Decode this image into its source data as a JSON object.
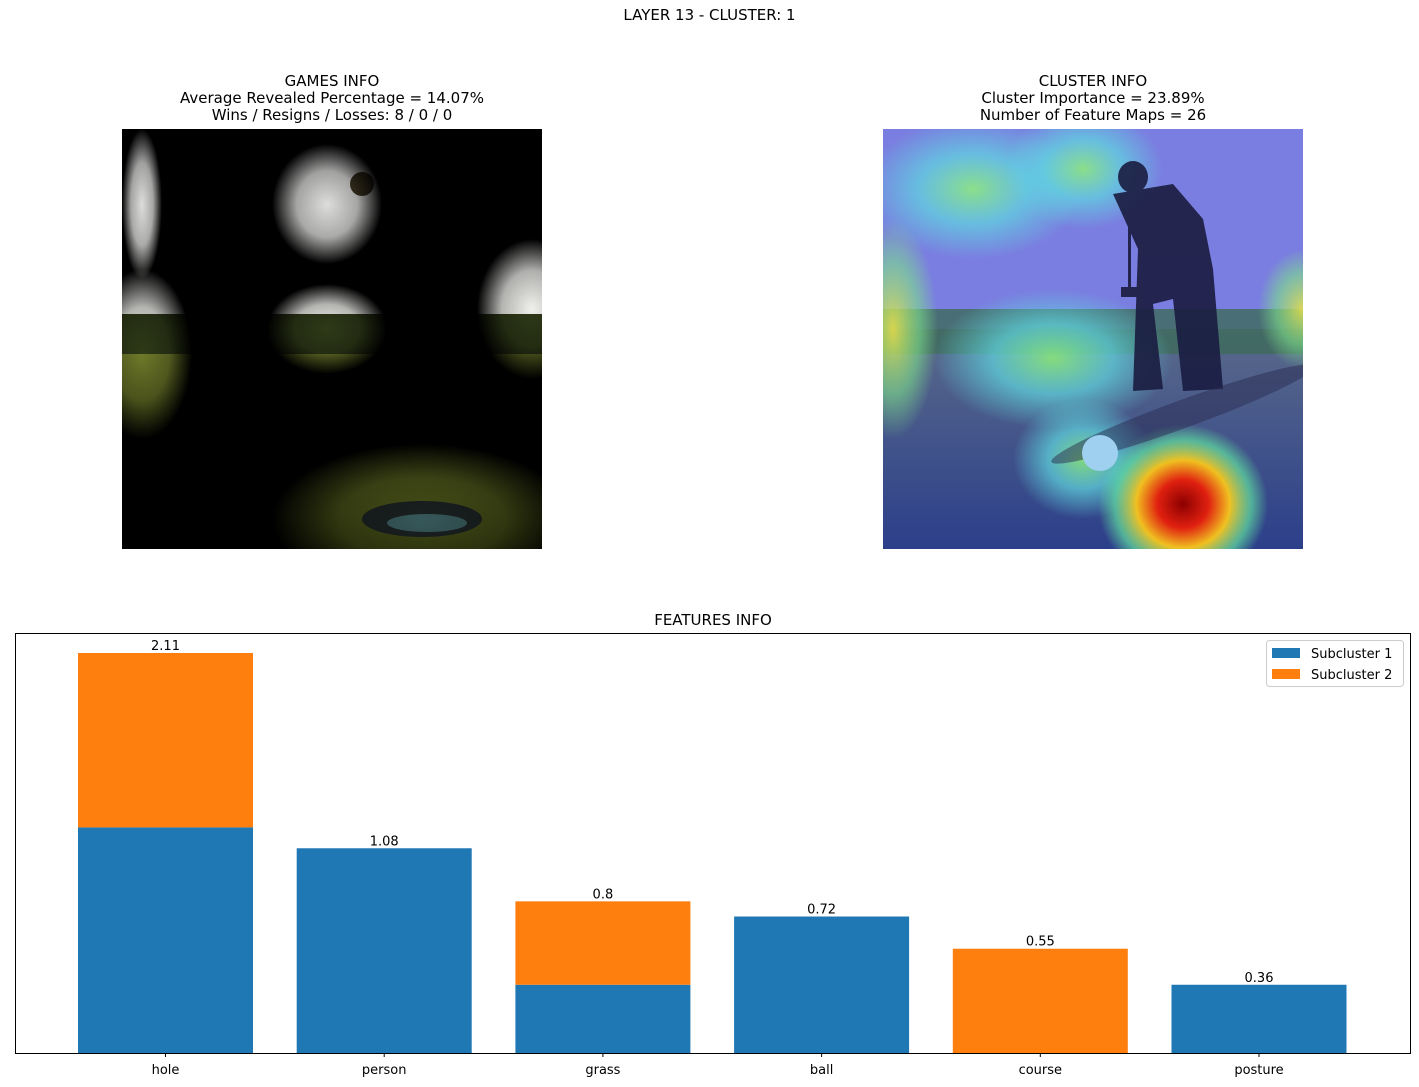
{
  "suptitle": "LAYER 13 - CLUSTER: 1",
  "games_info": {
    "title": "GAMES INFO",
    "line1": "Average Revealed Percentage = 14.07%",
    "line2": "Wins / Resigns / Losses: 8 / 0 / 0"
  },
  "cluster_info": {
    "title": "CLUSTER INFO",
    "line1": "Cluster Importance = 23.89%",
    "line2": "Number of Feature Maps = 26"
  },
  "colors": {
    "subcluster1": "#1f77b4",
    "subcluster2": "#ff7f0e"
  },
  "chart_data": {
    "type": "bar",
    "stacked": true,
    "title": "FEATURES INFO",
    "xlabel": "",
    "ylabel": "",
    "categories": [
      "hole",
      "person",
      "grass",
      "ball",
      "course",
      "posture"
    ],
    "series": [
      {
        "name": "Subcluster 1",
        "values": [
          1.19,
          1.08,
          0.36,
          0.72,
          0.0,
          0.36
        ]
      },
      {
        "name": "Subcluster 2",
        "values": [
          0.92,
          0.0,
          0.44,
          0.0,
          0.55,
          0.0
        ]
      }
    ],
    "totals": [
      "2.11",
      "1.08",
      "0.8",
      "0.72",
      "0.55",
      "0.36"
    ],
    "ylim": [
      0,
      2.2155
    ],
    "legend": "top-right",
    "grid": false
  }
}
